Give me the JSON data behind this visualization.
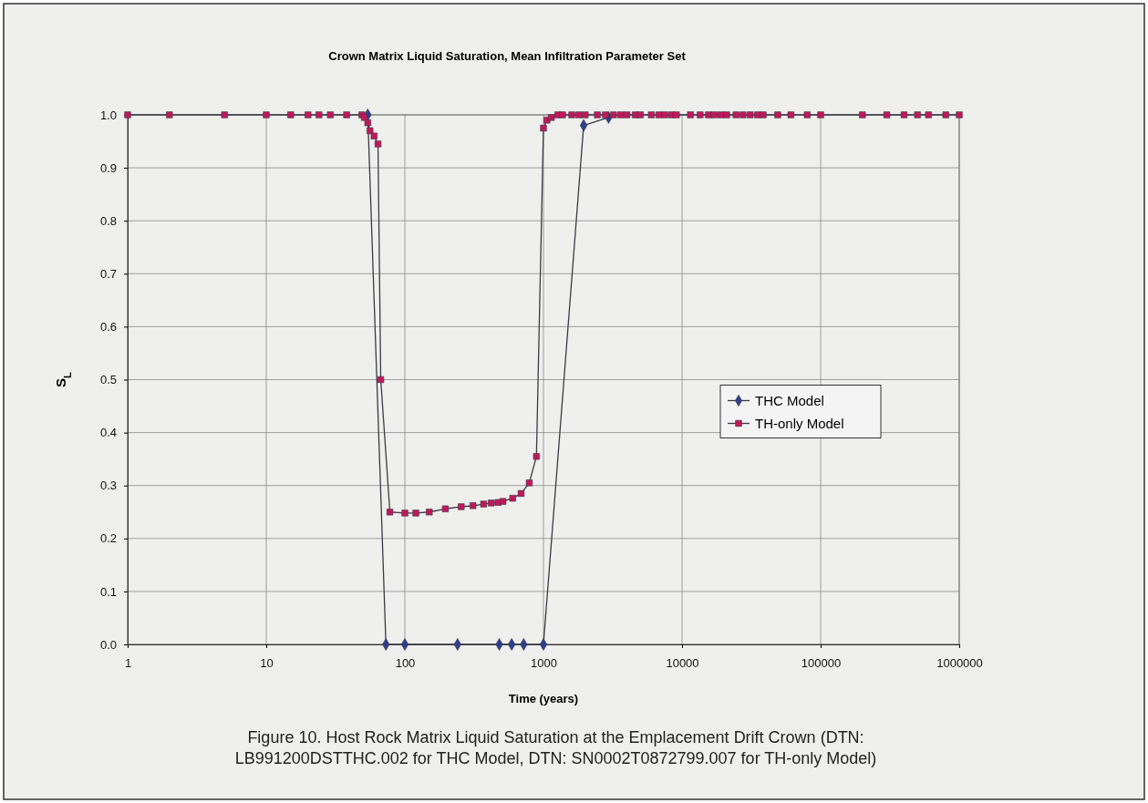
{
  "chart_data": {
    "type": "line",
    "title": "Crown Matrix Liquid Saturation, Mean Infiltration Parameter Set",
    "xlabel": "Time (years)",
    "ylabel": "S$_{L}$",
    "log": "x",
    "grid": true,
    "legend": "right",
    "marker": "square",
    "xlim": [
      1,
      1000000
    ],
    "xticks": [
      1,
      10,
      100,
      1000,
      10000,
      100000,
      1000000
    ],
    "ylim": [
      0,
      1
    ],
    "yticks": [
      {
        "value": 0,
        "label": "0.0"
      },
      {
        "value": 0.1,
        "label": "0.1"
      },
      {
        "value": 0.2,
        "label": "0.2"
      },
      {
        "value": 0.3,
        "label": "0.3"
      },
      {
        "value": 0.4,
        "label": "0.4"
      },
      {
        "value": 0.5,
        "label": "0.5"
      },
      {
        "value": 0.6,
        "label": "0.6"
      },
      {
        "value": 0.7,
        "label": "0.7"
      },
      {
        "value": 0.8,
        "label": "0.8"
      },
      {
        "value": 0.9,
        "label": "0.9"
      },
      {
        "value": 1,
        "label": "1.0"
      }
    ],
    "series": [
      {
        "name": "THC Model",
        "color": "#2e3f8f",
        "marker": "diamond",
        "x": [
          54,
          73,
          100,
          240,
          480,
          590,
          720,
          1000,
          1950,
          2950
        ],
        "values": [
          1,
          0,
          0,
          0,
          0,
          0,
          0,
          0,
          0.98,
          0.995
        ]
      },
      {
        "name": "TH-only Model",
        "color": "#c2185b",
        "x": [
          1,
          2,
          5,
          10,
          15,
          20,
          24,
          29,
          38,
          49,
          51,
          54,
          56,
          60,
          64,
          67,
          78,
          100,
          120,
          150,
          196,
          255,
          310,
          370,
          420,
          470,
          510,
          600,
          690,
          790,
          890,
          1000,
          1060,
          1140,
          1270,
          1374,
          1600,
          1800,
          2000,
          2450,
          2800,
          3200,
          3600,
          4000,
          4600,
          5000,
          6000,
          6800,
          7500,
          8400,
          9100,
          11500,
          13500,
          15500,
          17000,
          19000,
          21000,
          24500,
          27500,
          31000,
          35000,
          38500,
          49000,
          61000,
          80000,
          100000,
          200000,
          300000,
          400000,
          500000,
          600000,
          800000,
          1000000
        ],
        "values": [
          1,
          1,
          1,
          1,
          1,
          1,
          1,
          1,
          1,
          1,
          0.995,
          0.985,
          0.97,
          0.96,
          0.945,
          0.5,
          0.25,
          0.248,
          0.248,
          0.25,
          0.256,
          0.26,
          0.262,
          0.265,
          0.267,
          0.268,
          0.27,
          0.276,
          0.285,
          0.305,
          0.355,
          0.975,
          0.99,
          0.995,
          1,
          1,
          1,
          1,
          1,
          1,
          1,
          1,
          1,
          1,
          1,
          1,
          1,
          1,
          1,
          1,
          1,
          1,
          1,
          1,
          1,
          1,
          1,
          1,
          1,
          1,
          1,
          1,
          1,
          1,
          1,
          1,
          1,
          1,
          1,
          1,
          1,
          1,
          1
        ]
      }
    ],
    "annotations": [
      "Figure 10. Host Rock Matrix Liquid Saturation at the Emplacement Drift Crown (DTN: LB991200DSTTHC.002 for THC Model, DTN: SN0002T0872799.007 for TH-only Model)"
    ]
  }
}
